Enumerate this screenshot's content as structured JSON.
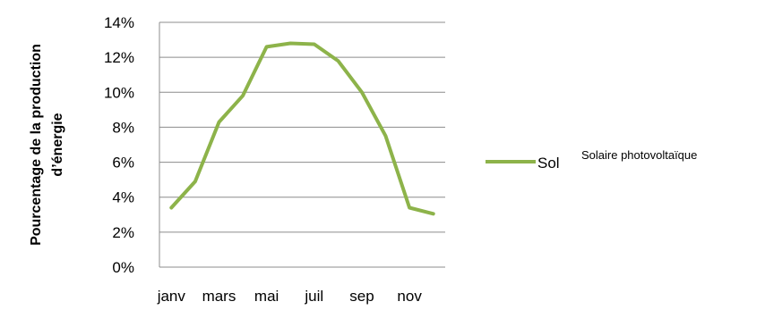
{
  "chart_data": {
    "type": "line",
    "ylabel_line1": "Pourcentage de la production",
    "ylabel_line2": "d’énergie",
    "x_tick_labels": [
      "janv",
      "mars",
      "mai",
      "juil",
      "sep",
      "nov"
    ],
    "y_tick_labels": [
      "0%",
      "2%",
      "4%",
      "6%",
      "8%",
      "10%",
      "12%",
      "14%"
    ],
    "ylim": [
      0,
      14
    ],
    "grid": true,
    "legend_position": "right",
    "series": [
      {
        "name": "Sol",
        "color": "#8db34a",
        "x": [
          "janv",
          "févr",
          "mars",
          "avr",
          "mai",
          "juin",
          "juil",
          "août",
          "sep",
          "oct",
          "nov",
          "déc"
        ],
        "values": [
          3.4,
          4.9,
          8.3,
          9.8,
          12.6,
          12.8,
          12.75,
          11.8,
          10.0,
          7.5,
          3.4,
          3.05
        ]
      }
    ],
    "annotation": "Solaire photovoltaïque"
  }
}
